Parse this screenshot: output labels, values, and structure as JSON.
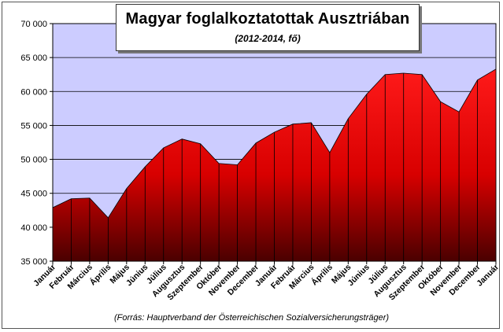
{
  "chart_data": {
    "type": "area",
    "title": "Magyar foglalkoztatottak Ausztriában",
    "subtitle": "(2012-2014, fő)",
    "source": "(Forrás: Hauptverband der Österreichischen Sozialversicherungsträger)",
    "ylim": [
      35000,
      70000
    ],
    "yticks": [
      35000,
      40000,
      45000,
      50000,
      55000,
      60000,
      65000,
      70000
    ],
    "ytick_labels": [
      "35 000",
      "40 000",
      "45 000",
      "50 000",
      "55 000",
      "60 000",
      "65 000",
      "70 000"
    ],
    "grid": true,
    "categories": [
      "Január",
      "Február",
      "Március",
      "Április",
      "Május",
      "Június",
      "Július",
      "Augusztus",
      "Szeptember",
      "Október",
      "November",
      "December",
      "Január",
      "Február",
      "Március",
      "Április",
      "Május",
      "Június",
      "Július",
      "Augusztus",
      "Szeptember",
      "Október",
      "November",
      "December",
      "Január"
    ],
    "values": [
      42900,
      44200,
      44300,
      41400,
      45700,
      48900,
      51700,
      53000,
      52300,
      49400,
      49200,
      52400,
      54000,
      55200,
      55400,
      51000,
      56000,
      59600,
      62500,
      62700,
      62500,
      58500,
      57000,
      61700,
      63300
    ],
    "colors": {
      "fill_top": "#ff1a1a",
      "fill_bottom": "#4a0000",
      "plot_bg": "#ccccff",
      "grid": "#000000"
    }
  }
}
